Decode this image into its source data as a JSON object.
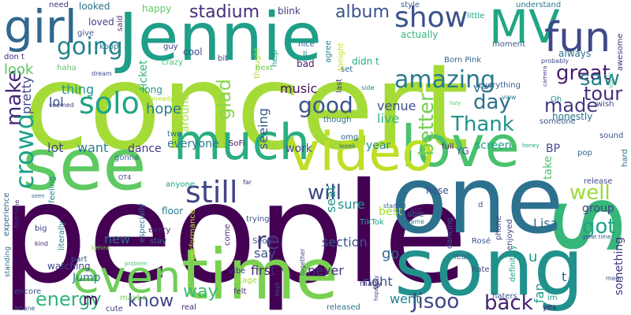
{
  "words": [
    {
      "text": "concert",
      "color": "#a5db36"
    },
    {
      "text": "s",
      "color": "#35b779"
    },
    {
      "text": "people",
      "color": "#440154"
    },
    {
      "text": "one",
      "color": "#2c728e"
    },
    {
      "text": "song",
      "color": "#21918c"
    },
    {
      "text": "time",
      "color": "#7ad151"
    },
    {
      "text": "Jennie",
      "color": "#1f9e89"
    },
    {
      "text": "see",
      "color": "#5ec962"
    },
    {
      "text": "love",
      "color": "#4ac16d"
    },
    {
      "text": "video",
      "color": "#bddf26"
    },
    {
      "text": "much",
      "color": "#29af7f"
    },
    {
      "text": "MV",
      "color": "#21a685"
    },
    {
      "text": "fun",
      "color": "#3e4989"
    },
    {
      "text": "girl",
      "color": "#31688e"
    },
    {
      "text": "even",
      "color": "#6ece58"
    },
    {
      "text": "still",
      "color": "#414487"
    },
    {
      "text": "show",
      "color": "#3b528b"
    },
    {
      "text": "going",
      "color": "#26828e"
    },
    {
      "text": "amazing",
      "color": "#2a788e"
    },
    {
      "text": "stadium",
      "color": "#472d7b"
    },
    {
      "text": "album",
      "color": "#3b528b"
    },
    {
      "text": "great",
      "color": "#481f70"
    },
    {
      "text": "solo",
      "color": "#20a486"
    },
    {
      "text": "good",
      "color": "#39568c"
    },
    {
      "text": "crowd",
      "color": "#1fa088"
    },
    {
      "text": "make",
      "color": "#482878"
    },
    {
      "text": "Thank",
      "color": "#21918c"
    },
    {
      "text": "better",
      "color": "#75d054"
    },
    {
      "text": "day",
      "color": "#2d708e"
    },
    {
      "text": "made",
      "color": "#453781"
    },
    {
      "text": "saw",
      "color": "#277f8e"
    },
    {
      "text": "tour",
      "color": "#472c7a"
    },
    {
      "text": "re",
      "color": "#46337e"
    },
    {
      "text": "will",
      "color": "#3f4788"
    },
    {
      "text": "well",
      "color": "#9bd93c"
    },
    {
      "text": "got",
      "color": "#1fa287"
    },
    {
      "text": "energy",
      "color": "#31b57b"
    },
    {
      "text": "know",
      "color": "#404688"
    },
    {
      "text": "way",
      "color": "#3aba76"
    },
    {
      "text": "back",
      "color": "#482173"
    },
    {
      "text": "Jisoo",
      "color": "#414487"
    },
    {
      "text": "glad",
      "color": "#89d548"
    },
    {
      "text": "look",
      "color": "#5cc863"
    },
    {
      "text": "pretty",
      "color": "#3e4a89"
    },
    {
      "text": "thing",
      "color": "#1f968b"
    },
    {
      "text": "lol",
      "color": "#3c508b"
    },
    {
      "text": "hope",
      "color": "#287d8e"
    },
    {
      "text": "music",
      "color": "#471063"
    },
    {
      "text": "seeing",
      "color": "#365c8d"
    },
    {
      "text": "live",
      "color": "#31b57b"
    },
    {
      "text": "venue",
      "color": "#3b528b"
    },
    {
      "text": "ve",
      "color": "#2d708e"
    },
    {
      "text": "lot",
      "color": "#3e4a89"
    },
    {
      "text": "want",
      "color": "#287c8e"
    },
    {
      "text": "dance",
      "color": "#453882"
    },
    {
      "text": "everyone",
      "color": "#2b758e"
    },
    {
      "text": "around",
      "color": "#a2da37"
    },
    {
      "text": "work",
      "color": "#3e4c8a"
    },
    {
      "text": "year",
      "color": "#20928c"
    },
    {
      "text": "screen",
      "color": "#1f9f88"
    },
    {
      "text": "BP",
      "color": "#3f4889"
    },
    {
      "text": "take",
      "color": "#4ec36b"
    },
    {
      "text": "group",
      "color": "#414287"
    },
    {
      "text": "Lisa",
      "color": "#2e6d8e"
    },
    {
      "text": "sure",
      "color": "#218f8d"
    },
    {
      "text": "seat",
      "color": "#1f9a8a"
    },
    {
      "text": "say",
      "color": "#3b528b"
    },
    {
      "text": "new",
      "color": "#2e6e8e"
    },
    {
      "text": "section",
      "color": "#38588c"
    },
    {
      "text": "go",
      "color": "#31678e"
    },
    {
      "text": "first",
      "color": "#482576"
    },
    {
      "text": "never",
      "color": "#463480"
    },
    {
      "text": "right",
      "color": "#3b518b"
    },
    {
      "text": "went",
      "color": "#26828e"
    },
    {
      "text": "fan",
      "color": "#1f9a8a"
    },
    {
      "text": "u",
      "color": "#1e9b8a"
    },
    {
      "text": "t",
      "color": "#365d8d"
    },
    {
      "text": "something",
      "color": "#46327e"
    },
    {
      "text": "m",
      "color": "#440154"
    },
    {
      "text": "Jump",
      "color": "#2c738e"
    },
    {
      "text": "watching",
      "color": "#3e4a89"
    },
    {
      "text": "ticket",
      "color": "#38b977"
    },
    {
      "text": "happy",
      "color": "#5ec962"
    },
    {
      "text": "blink",
      "color": "#453781"
    },
    {
      "text": "actually",
      "color": "#35b779"
    },
    {
      "text": "always",
      "color": "#2d718e"
    },
    {
      "text": "honestly",
      "color": "#2c738e"
    },
    {
      "text": "looked",
      "color": "#2c728e"
    },
    {
      "text": "need",
      "color": "#46307e"
    },
    {
      "text": "said",
      "color": "#46337e"
    },
    {
      "text": "style",
      "color": "#375b8d"
    },
    {
      "text": "little",
      "color": "#1fa187"
    },
    {
      "text": "understand",
      "color": "#2a788e"
    },
    {
      "text": "awesome",
      "color": "#46307e"
    },
    {
      "text": "loved",
      "color": "#424186"
    },
    {
      "text": "give",
      "color": "#3b528b"
    },
    {
      "text": "nice",
      "color": "#35608d"
    },
    {
      "text": "agree",
      "color": "#25848e"
    },
    {
      "text": "tonight",
      "color": "#cae11f"
    },
    {
      "text": "didn t",
      "color": "#26ad81"
    },
    {
      "text": "moment",
      "color": "#38598c"
    },
    {
      "text": "don t",
      "color": "#472f7d"
    },
    {
      "text": "haha",
      "color": "#5cc863"
    },
    {
      "text": "kpop",
      "color": "#2a768e"
    },
    {
      "text": "guy",
      "color": "#424086"
    },
    {
      "text": "cool",
      "color": "#3c508b"
    },
    {
      "text": "ll",
      "color": "#23888e"
    },
    {
      "text": "bad",
      "color": "#481a6c"
    },
    {
      "text": "thought",
      "color": "#addc30"
    },
    {
      "text": "help",
      "color": "#1fa188"
    },
    {
      "text": "Born Pink",
      "color": "#33638d"
    },
    {
      "text": "probably",
      "color": "#3e4989"
    },
    {
      "text": "bit",
      "color": "#404588"
    },
    {
      "text": "crazy",
      "color": "#48c16e"
    },
    {
      "text": "next",
      "color": "#6ccd5a"
    },
    {
      "text": "set",
      "color": "#2f6c8e"
    },
    {
      "text": "dream",
      "color": "#3b528b"
    },
    {
      "text": "long",
      "color": "#1f958b"
    },
    {
      "text": "already",
      "color": "#b5de2b"
    },
    {
      "text": "everything",
      "color": "#355e8d"
    },
    {
      "text": "Oh",
      "color": "#1f948c"
    },
    {
      "text": "wish",
      "color": "#3f4889"
    },
    {
      "text": "camera",
      "color": "#46337e"
    },
    {
      "text": "iconic",
      "color": "#3aba76"
    },
    {
      "text": "lazy",
      "color": "#5ec962"
    },
    {
      "text": "view",
      "color": "#2a778e"
    },
    {
      "text": "side",
      "color": "#26828e"
    },
    {
      "text": "last",
      "color": "#453781"
    },
    {
      "text": "though",
      "color": "#2f6b8e"
    },
    {
      "text": "someone",
      "color": "#38598c"
    },
    {
      "text": "seemed",
      "color": "#424186"
    },
    {
      "text": "two",
      "color": "#2d708e"
    },
    {
      "text": "SoFi",
      "color": "#481467"
    },
    {
      "text": "omg",
      "color": "#33638d"
    },
    {
      "text": "week",
      "color": "#2d718e"
    },
    {
      "text": "full",
      "color": "#472d7b"
    },
    {
      "text": "YG",
      "color": "#355f8d"
    },
    {
      "text": "honey",
      "color": "#1f9f88"
    },
    {
      "text": "sound",
      "color": "#3b528b"
    },
    {
      "text": "pop",
      "color": "#34618d"
    },
    {
      "text": "hard",
      "color": "#2c738e"
    },
    {
      "text": "gonna",
      "color": "#32648e"
    },
    {
      "text": "OT4",
      "color": "#433e85"
    },
    {
      "text": "anyone",
      "color": "#20a386"
    },
    {
      "text": "best",
      "color": "#a8db34"
    },
    {
      "text": "Rose",
      "color": "#3b528b"
    },
    {
      "text": "release",
      "color": "#3e4a89"
    },
    {
      "text": "floor",
      "color": "#27808e"
    },
    {
      "text": "far",
      "color": "#46337e"
    },
    {
      "text": "APT",
      "color": "#482475"
    },
    {
      "text": "started",
      "color": "#31668e"
    },
    {
      "text": "TikTok",
      "color": "#1f9e89"
    },
    {
      "text": "feeling",
      "color": "#24878e"
    },
    {
      "text": "trying",
      "color": "#3b528b"
    },
    {
      "text": "experience",
      "color": "#33638d"
    },
    {
      "text": "first time",
      "color": "#46337e"
    },
    {
      "text": "seen",
      "color": "#2f6b8e"
    },
    {
      "text": "big",
      "color": "#414487"
    },
    {
      "text": "literally",
      "color": "#26818e"
    },
    {
      "text": "every",
      "color": "#482979"
    },
    {
      "text": "stay",
      "color": "#31688e"
    },
    {
      "text": "come",
      "color": "#472d7b"
    },
    {
      "text": "Seoul",
      "color": "#3b528b"
    },
    {
      "text": "especially",
      "color": "#2c728e"
    },
    {
      "text": "performance",
      "color": "#b8de29"
    },
    {
      "text": "enjoyed",
      "color": "#3f4788"
    },
    {
      "text": "phone",
      "color": "#433e85"
    },
    {
      "text": "dancing",
      "color": "#3a548c"
    },
    {
      "text": "Rosé",
      "color": "#38598c"
    },
    {
      "text": "able",
      "color": "#34608d"
    },
    {
      "text": "came",
      "color": "#24868e"
    },
    {
      "text": "d",
      "color": "#365c8d"
    },
    {
      "text": "mean",
      "color": "#3b528b"
    },
    {
      "text": "great time",
      "color": "#3b528b"
    },
    {
      "text": "standing",
      "color": "#2e6e8e"
    },
    {
      "text": "kind",
      "color": "#482071"
    },
    {
      "text": "behind",
      "color": "#7ad151"
    },
    {
      "text": "part",
      "color": "#3a548c"
    },
    {
      "text": "problem",
      "color": "#48c16e"
    },
    {
      "text": "vibe",
      "color": "#46337e"
    },
    {
      "text": "stage",
      "color": "#a0da39"
    },
    {
      "text": "felt",
      "color": "#482576"
    },
    {
      "text": "kept",
      "color": "#3b528b"
    },
    {
      "text": "together",
      "color": "#3c4f8a"
    },
    {
      "text": "Yeah",
      "color": "#31668e"
    },
    {
      "text": "hate",
      "color": "#414487"
    },
    {
      "text": "definitely",
      "color": "#20a486"
    },
    {
      "text": "hopefully",
      "color": "#46337e"
    },
    {
      "text": "haters",
      "color": "#3b528b"
    },
    {
      "text": "im",
      "color": "#1f948c"
    },
    {
      "text": "yes",
      "color": "#471063"
    },
    {
      "text": "encore",
      "color": "#3b528b"
    },
    {
      "text": "maybe",
      "color": "#6ece58"
    },
    {
      "text": "cute",
      "color": "#424086"
    },
    {
      "text": "real",
      "color": "#482878"
    },
    {
      "text": "insane",
      "color": "#3b528b"
    },
    {
      "text": "released",
      "color": "#2c738e"
    },
    {
      "text": "many",
      "color": "#46327e"
    }
  ]
}
